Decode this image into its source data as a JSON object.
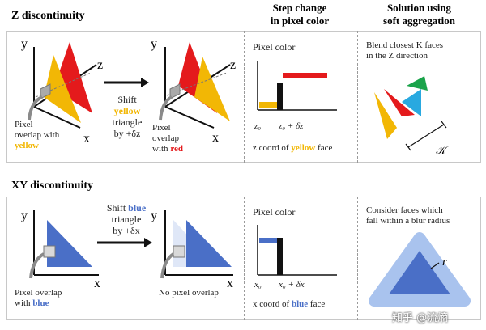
{
  "colors": {
    "yellow": "#f2b705",
    "red": "#e41a1c",
    "blue": "#4a6fc7",
    "cyan": "#29a9e0",
    "green": "#1aa34a",
    "gray": "#8a8a8a",
    "lightblue": "#a9c3ee",
    "black": "#111111"
  },
  "z_section": {
    "title": "Z discontinuity",
    "col_step": {
      "line1": "Step change",
      "line2": "in pixel color"
    },
    "col_soft": {
      "line1": "Solution using",
      "line2": "soft aggregation"
    },
    "panel1": {
      "y": "y",
      "z": "z",
      "x": "x",
      "caption": {
        "l1": "Pixel",
        "l2": "overlap with",
        "l3": "yellow"
      }
    },
    "arrow": {
      "l1": "Shift",
      "l2": "yellow",
      "l3": "triangle",
      "l4": "by +δz"
    },
    "panel2": {
      "y": "y",
      "z": "z",
      "x": "x",
      "caption": {
        "l1": "Pixel",
        "l2": "overlap",
        "l3_pre": "with ",
        "l3_col": "red"
      }
    },
    "step_plot": {
      "ylabel": "Pixel color",
      "tick0": "z₀",
      "tick1": "z₀ + δz",
      "xlabel_pre": "z coord of ",
      "xlabel_col": "yellow",
      "xlabel_post": " face"
    },
    "soft": {
      "l1": "Blend closest K faces",
      "l2": "in the Z direction",
      "k": "𝒦"
    }
  },
  "xy_section": {
    "title": "XY discontinuity",
    "panel1": {
      "y": "y",
      "x": "x",
      "caption": {
        "l1": "Pixel overlap",
        "l2_pre": "with ",
        "l2_col": "blue"
      }
    },
    "arrow": {
      "l1_pre": "Shift ",
      "l1_col": "blue",
      "l2": "triangle",
      "l3": "by +δx"
    },
    "panel2": {
      "y": "y",
      "x": "x",
      "caption": "No pixel overlap"
    },
    "step_plot": {
      "ylabel": "Pixel color",
      "tick0": "x₀",
      "tick1": "x₀ + δx",
      "xlabel_pre": "x coord of ",
      "xlabel_col": "blue",
      "xlabel_post": " face"
    },
    "soft": {
      "l1": "Consider faces which",
      "l2": "fall within a blur radius",
      "r": "r"
    }
  },
  "watermark": "知乎 @流熵"
}
